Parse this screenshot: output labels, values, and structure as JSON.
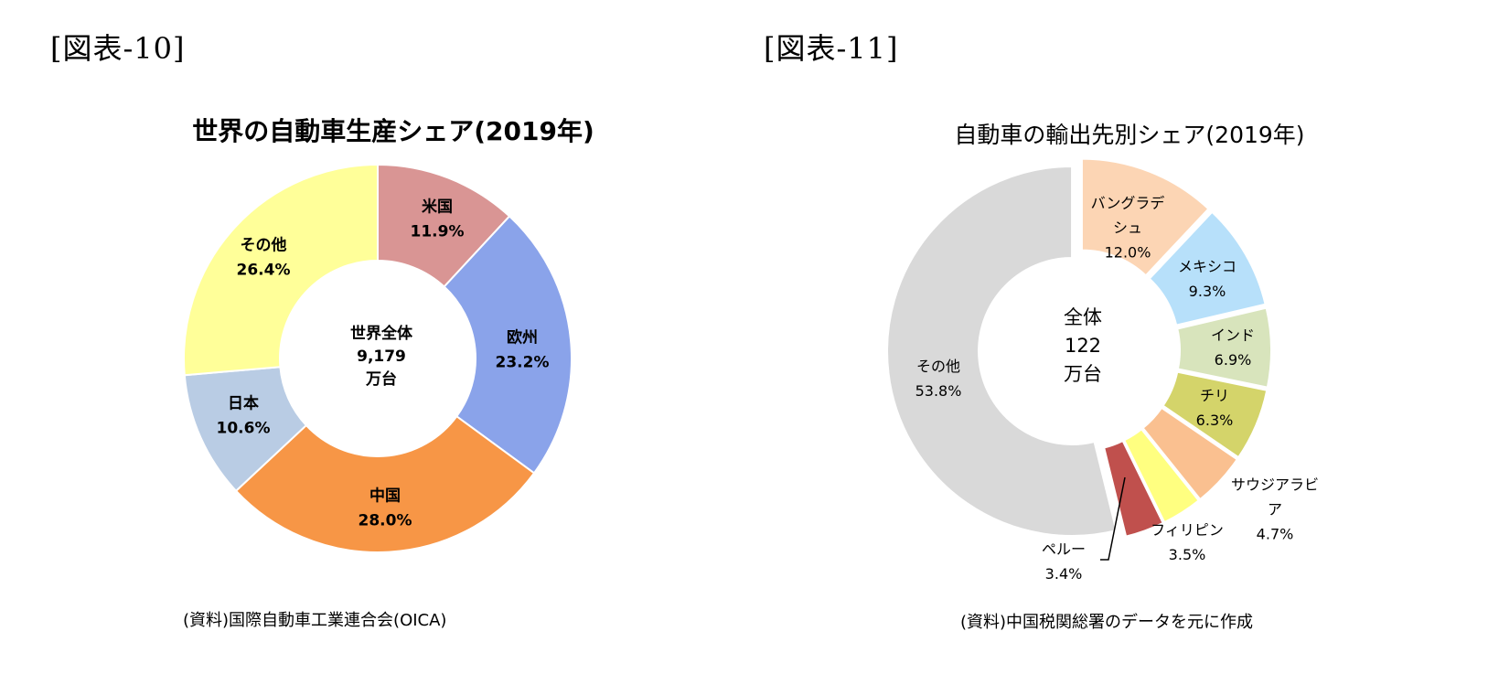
{
  "figures": [
    {
      "label": "[図表-10]"
    },
    {
      "label": "[図表-11]"
    }
  ],
  "chart_data": [
    {
      "type": "pie",
      "title": "世界の自動車生産シェア(2019年)",
      "center_label": [
        "世界全体",
        "9,179",
        "万台"
      ],
      "source": "(資料)国際自動車工業連合会(OICA)",
      "slices": [
        {
          "label": "米国",
          "value_label": "11.9%",
          "value": 11.9,
          "color": "#d99594"
        },
        {
          "label": "欧州",
          "value_label": "23.2%",
          "value": 23.2,
          "color": "#8aa3ea"
        },
        {
          "label": "中国",
          "value_label": "28.0%",
          "value": 28.0,
          "color": "#f79646"
        },
        {
          "label": "日本",
          "value_label": "10.6%",
          "value": 10.6,
          "color": "#b9cce4"
        },
        {
          "label": "その他",
          "value_label": "26.4%",
          "value": 26.4,
          "color": "#ffff99"
        }
      ]
    },
    {
      "type": "pie",
      "title": "自動車の輸出先別シェア(2019年)",
      "center_label": [
        "全体",
        "122",
        "万台"
      ],
      "source": "(資料)中国税関総署のデータを元に作成",
      "slices": [
        {
          "label_lines": [
            "バングラデ",
            "シュ"
          ],
          "value_label": "12.0%",
          "value": 12.0,
          "color": "#fcd5b4"
        },
        {
          "label_lines": [
            "メキシコ"
          ],
          "value_label": "9.3%",
          "value": 9.3,
          "color": "#b7e0fa"
        },
        {
          "label_lines": [
            "インド"
          ],
          "value_label": "6.9%",
          "value": 6.9,
          "color": "#d8e4bc"
        },
        {
          "label_lines": [
            "チリ"
          ],
          "value_label": "6.3%",
          "value": 6.3,
          "color": "#d4d46a"
        },
        {
          "label_lines": [
            "サウジアラビ",
            "ア"
          ],
          "value_label": "4.7%",
          "value": 4.7,
          "color": "#fac090"
        },
        {
          "label_lines": [
            "フィリピン"
          ],
          "value_label": "3.5%",
          "value": 3.5,
          "color": "#ffff80"
        },
        {
          "label_lines": [
            "ペルー"
          ],
          "value_label": "3.4%",
          "value": 3.4,
          "color": "#c0504d"
        },
        {
          "label_lines": [
            "その他"
          ],
          "value_label": "53.8%",
          "value": 53.8,
          "color": "#d9d9d9"
        }
      ]
    }
  ]
}
